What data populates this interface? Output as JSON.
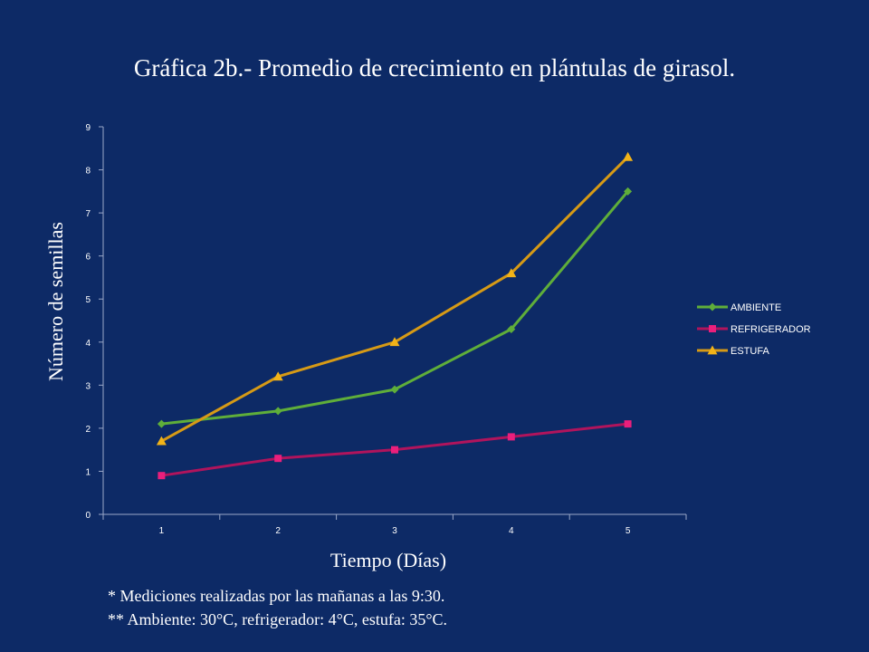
{
  "chart_data": {
    "type": "line",
    "title": "Gráfica 2b.- Promedio de crecimiento en plántulas  de girasol.",
    "xlabel": "Tiempo (Días)",
    "ylabel": "Número de semillas",
    "categories": [
      "1",
      "2",
      "3",
      "4",
      "5"
    ],
    "ylim": [
      0,
      9
    ],
    "yticks": [
      "0",
      "1",
      "2",
      "3",
      "4",
      "5",
      "6",
      "7",
      "8",
      "9"
    ],
    "grid": false,
    "legend_position": "right",
    "series": [
      {
        "name": "AMBIENTE",
        "values": [
          2.1,
          2.4,
          2.9,
          4.3,
          7.5
        ],
        "color": "#5fae3a",
        "marker": "diamond"
      },
      {
        "name": "REFRIGERADOR",
        "values": [
          0.9,
          1.3,
          1.5,
          1.8,
          2.1
        ],
        "color": "#b0145c",
        "marker": "square",
        "marker_color": "#ea1f7c"
      },
      {
        "name": "ESTUFA",
        "values": [
          1.7,
          3.2,
          4.0,
          5.6,
          8.3
        ],
        "color": "#d69a16",
        "marker": "triangle",
        "marker_color": "#f2b318"
      }
    ]
  },
  "notes": {
    "line1": "* Mediciones realizadas por las mañanas a las 9:30.",
    "line2": "** Ambiente: 30°C, refrigerador: 4°C, estufa: 35°C."
  }
}
